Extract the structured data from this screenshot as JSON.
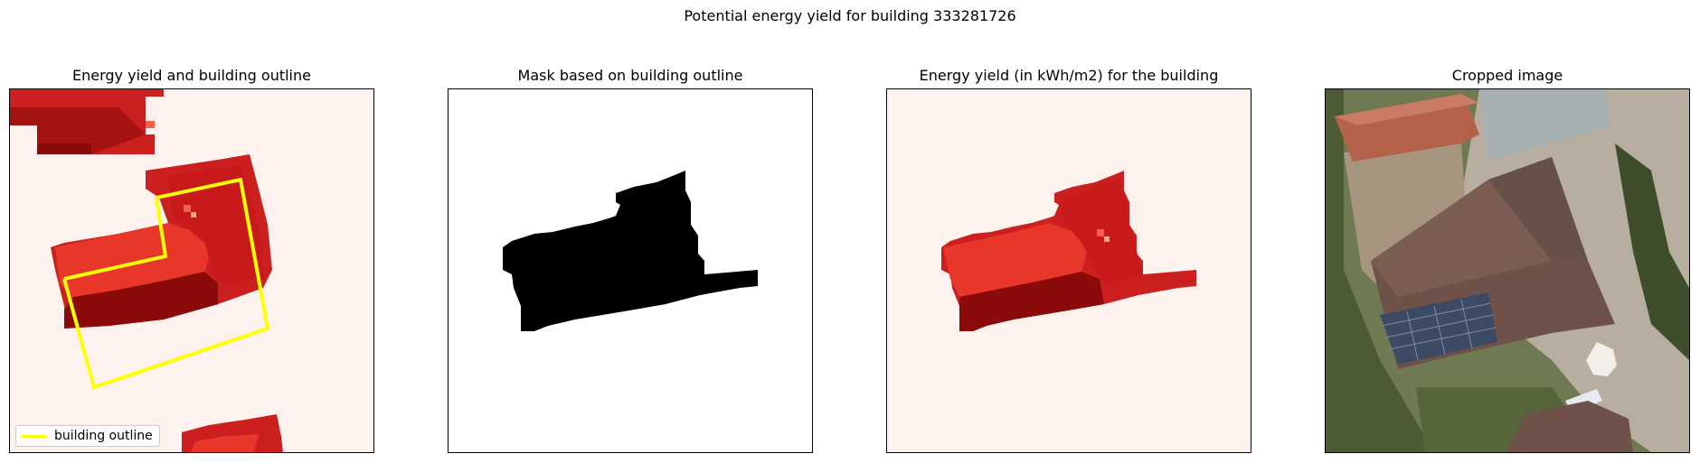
{
  "figure": {
    "title": "Potential energy yield for building 333281726"
  },
  "panels": [
    {
      "title": "Energy yield and building outline",
      "legend_label": "building outline"
    },
    {
      "title": "Mask based on building outline"
    },
    {
      "title": "Energy yield (in kWh/m2) for the building"
    },
    {
      "title": "Cropped image"
    }
  ],
  "colors": {
    "outline": "#ffff00",
    "background_heatmap": "#fdf2ee",
    "roof_light": "#e8362a",
    "roof_mid": "#cc1f1f",
    "roof_dark": "#8b0a0a",
    "mask": "#000000"
  },
  "chart_data": [
    {
      "type": "heatmap",
      "title": "Energy yield and building outline",
      "overlay": "building outline",
      "legend": "bottom-left"
    },
    {
      "type": "heatmap",
      "title": "Mask based on building outline",
      "cmap": "binary"
    },
    {
      "type": "heatmap",
      "title": "Energy yield (in kWh/m2) for the building",
      "cmap": "Reds"
    },
    {
      "type": "image",
      "title": "Cropped image"
    }
  ]
}
